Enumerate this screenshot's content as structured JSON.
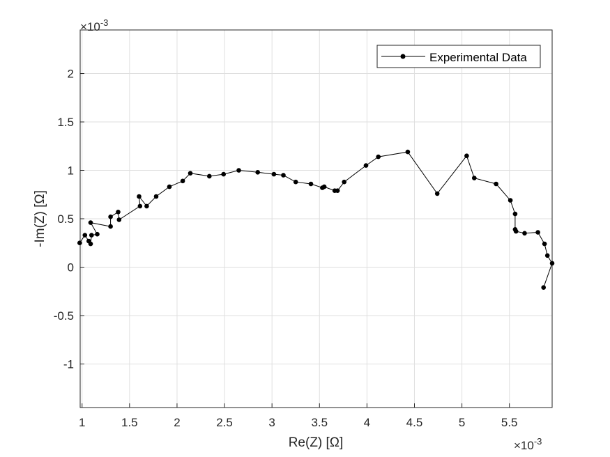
{
  "chart_data": {
    "type": "line",
    "xlabel": "Re(Z) [Ω]",
    "ylabel": "-Im(Z) [Ω]",
    "x_exponent_label": "×10",
    "x_exponent_power": "-3",
    "y_exponent_label": "×10",
    "y_exponent_power": "-3",
    "xlim": [
      0.00098,
      0.00595
    ],
    "ylim": [
      -0.00145,
      0.00245
    ],
    "grid": true,
    "legend_position": "top-right",
    "x_ticks": [
      {
        "value": 0.001,
        "label": "1"
      },
      {
        "value": 0.0015,
        "label": "1.5"
      },
      {
        "value": 0.002,
        "label": "2"
      },
      {
        "value": 0.0025,
        "label": "2.5"
      },
      {
        "value": 0.003,
        "label": "3"
      },
      {
        "value": 0.0035,
        "label": "3.5"
      },
      {
        "value": 0.004,
        "label": "4"
      },
      {
        "value": 0.0045,
        "label": "4.5"
      },
      {
        "value": 0.005,
        "label": "5"
      },
      {
        "value": 0.0055,
        "label": "5.5"
      }
    ],
    "y_ticks": [
      {
        "value": 0.002,
        "label": "2"
      },
      {
        "value": 0.0015,
        "label": "1.5"
      },
      {
        "value": 0.001,
        "label": "1"
      },
      {
        "value": 0.0005,
        "label": "0.5"
      },
      {
        "value": 0.0,
        "label": "0"
      },
      {
        "value": -0.0005,
        "label": "-0.5"
      },
      {
        "value": -0.001,
        "label": "-1"
      }
    ],
    "series": [
      {
        "name": "Experimental Data",
        "color": "#000000",
        "x": [
          0.000975,
          0.00103,
          0.00107,
          0.00109,
          0.0011,
          0.00116,
          0.00109,
          0.0013,
          0.0013,
          0.00138,
          0.00139,
          0.00161,
          0.0016,
          0.00168,
          0.00178,
          0.00192,
          0.00206,
          0.00214,
          0.00234,
          0.00249,
          0.00265,
          0.00285,
          0.00302,
          0.00312,
          0.00325,
          0.00341,
          0.00353,
          0.00355,
          0.00366,
          0.00369,
          0.00376,
          0.00399,
          0.00412,
          0.00443,
          0.00474,
          0.00505,
          0.00513,
          0.00536,
          0.00551,
          0.00556,
          0.00556,
          0.00557,
          0.00566,
          0.0058,
          0.00587,
          0.0059,
          0.00595,
          0.00586
        ],
        "y": [
          0.00025,
          0.00033,
          0.00027,
          0.00024,
          0.00033,
          0.00034,
          0.00046,
          0.00042,
          0.00052,
          0.00057,
          0.00049,
          0.00063,
          0.00073,
          0.00063,
          0.00073,
          0.00083,
          0.00089,
          0.00097,
          0.00094,
          0.00096,
          0.001,
          0.00098,
          0.00096,
          0.00095,
          0.00088,
          0.00086,
          0.00082,
          0.00083,
          0.00079,
          0.00079,
          0.00088,
          0.00105,
          0.00114,
          0.00119,
          0.00076,
          0.00115,
          0.00092,
          0.00086,
          0.00069,
          0.00055,
          0.00039,
          0.00037,
          0.00035,
          0.00036,
          0.00024,
          0.00012,
          4e-05,
          -0.00021
        ]
      }
    ]
  }
}
